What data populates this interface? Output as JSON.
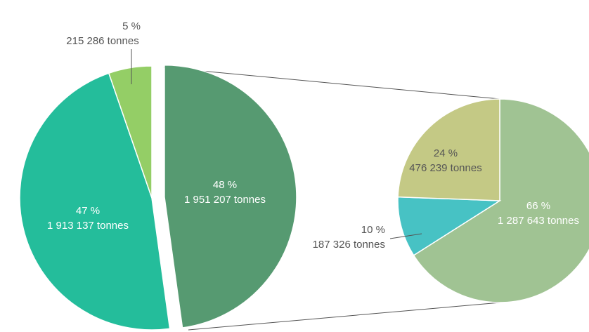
{
  "chart_data": [
    {
      "type": "pie",
      "slices": [
        {
          "percent_label": "48 %",
          "value_label": "1 951 207 tonnes",
          "value": 1951207,
          "color": "#569a71"
        },
        {
          "percent_label": "47 %",
          "value_label": "1 913 137 tonnes",
          "value": 1913137,
          "color": "#24bd9b"
        },
        {
          "percent_label": "5 %",
          "value_label": "215 286 tonnes",
          "value": 215286,
          "color": "#94ce66"
        }
      ]
    },
    {
      "type": "pie",
      "slices": [
        {
          "percent_label": "66 %",
          "value_label": "1 287 643 tonnes",
          "value": 1287643,
          "color": "#a0c393"
        },
        {
          "percent_label": "10 %",
          "value_label": "187 326 tonnes",
          "value": 187326,
          "color": "#47c2c4"
        },
        {
          "percent_label": "24 %",
          "value_label": "476 239 tonnes",
          "value": 476239,
          "color": "#c4c985"
        }
      ]
    }
  ]
}
